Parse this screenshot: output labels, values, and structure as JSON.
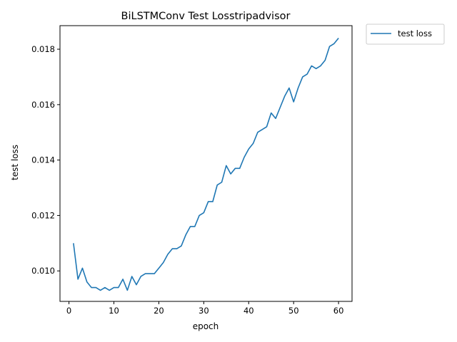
{
  "chart_data": {
    "type": "line",
    "title": "BiLSTMConv Test Losstripadvisor",
    "xlabel": "epoch",
    "ylabel": "test loss",
    "xlim": [
      -2,
      63
    ],
    "ylim": [
      0.0089,
      0.01885
    ],
    "xticks": [
      0,
      10,
      20,
      30,
      40,
      50,
      60
    ],
    "xtick_labels": [
      "0",
      "10",
      "20",
      "30",
      "40",
      "50",
      "60"
    ],
    "yticks": [
      0.01,
      0.012,
      0.014,
      0.016,
      0.018
    ],
    "ytick_labels": [
      "0.010",
      "0.012",
      "0.014",
      "0.016",
      "0.018"
    ],
    "grid": false,
    "legend_position": "outside-top-right",
    "series": [
      {
        "name": "test loss",
        "color": "#1f77b4",
        "x": [
          1,
          2,
          3,
          4,
          5,
          6,
          7,
          8,
          9,
          10,
          11,
          12,
          13,
          14,
          15,
          16,
          17,
          18,
          19,
          20,
          21,
          22,
          23,
          24,
          25,
          26,
          27,
          28,
          29,
          30,
          31,
          32,
          33,
          34,
          35,
          36,
          37,
          38,
          39,
          40,
          41,
          42,
          43,
          44,
          45,
          46,
          47,
          48,
          49,
          50,
          51,
          52,
          53,
          54,
          55,
          56,
          57,
          58,
          59,
          60
        ],
        "values": [
          0.011,
          0.0097,
          0.0101,
          0.0096,
          0.0094,
          0.0094,
          0.0093,
          0.0094,
          0.0093,
          0.0094,
          0.0094,
          0.0097,
          0.0093,
          0.0098,
          0.0095,
          0.0098,
          0.0099,
          0.0099,
          0.0099,
          0.0101,
          0.0103,
          0.0106,
          0.0108,
          0.0108,
          0.0109,
          0.0113,
          0.0116,
          0.0116,
          0.012,
          0.0121,
          0.0125,
          0.0125,
          0.0131,
          0.0132,
          0.0138,
          0.0135,
          0.0137,
          0.0137,
          0.0141,
          0.0144,
          0.0146,
          0.015,
          0.0151,
          0.0152,
          0.0157,
          0.0155,
          0.0159,
          0.0163,
          0.0166,
          0.0161,
          0.0166,
          0.017,
          0.0171,
          0.0174,
          0.0173,
          0.0174,
          0.0176,
          0.0181,
          0.0182,
          0.0184
        ]
      }
    ]
  }
}
